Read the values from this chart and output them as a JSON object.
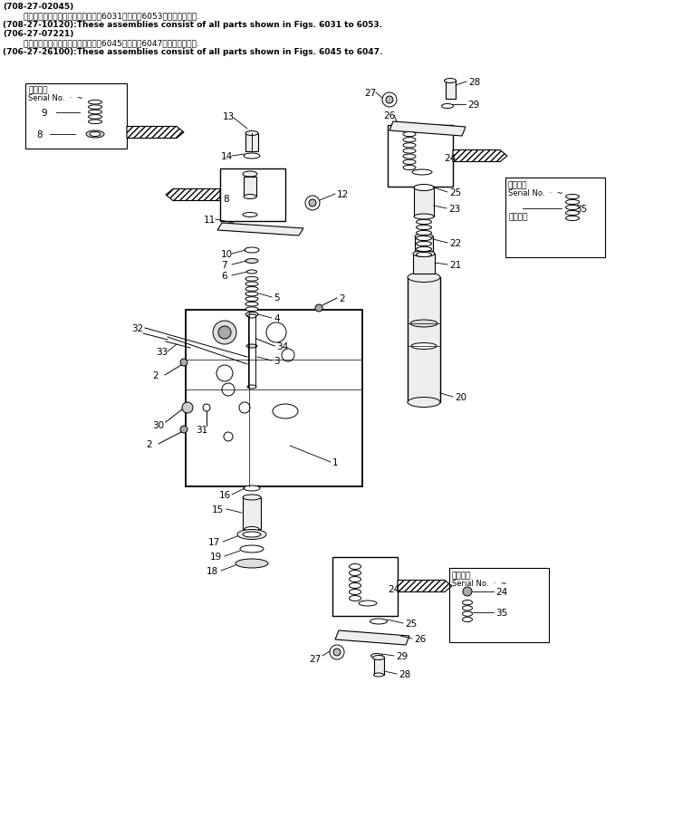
{
  "bg_color": "#ffffff",
  "title_lines": [
    "(708-27-02045)",
    "        これらのアセンブリの構成部品は第6031図から第6053図まで含みます.",
    "(708-27-10120):These assemblies consist of all parts shown in Figs. 6031 to 6053.",
    "(706-27-07221)",
    "        これらのアセンブリの構成部品は第6045図から第6047図まで含みます.",
    "(706-27-26100):These assemblies consist of all parts shown in Figs. 6045 to 6047."
  ],
  "font_size_header": 6.5,
  "font_size_label": 7.5,
  "font_size_serial": 6.5
}
